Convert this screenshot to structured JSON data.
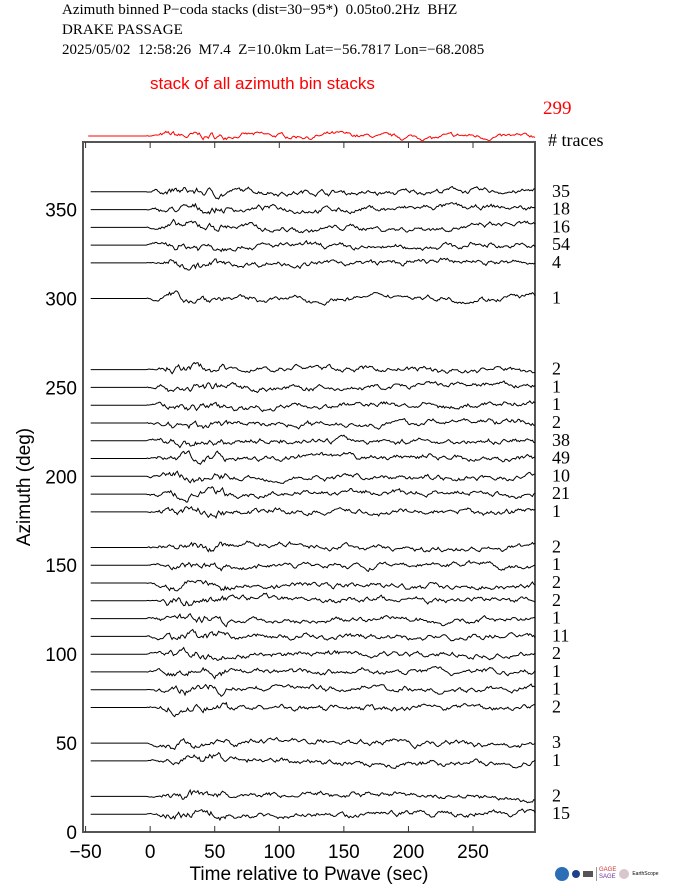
{
  "header": {
    "line1": "Azimuth binned P−coda stacks (dist=30−95*)  0.05to0.2Hz  BHZ",
    "line2": "DRAKE PASSAGE",
    "line3": "2025/05/02  12:58:26  M7.4  Z=10.0km Lat=−56.7817 Lon=−68.2085"
  },
  "chart_data": {
    "type": "line",
    "xlabel": "Time relative to Pwave (sec)",
    "ylabel": "Azimuth (deg)",
    "xlim": [
      -52,
      298
    ],
    "ylim": [
      0,
      388
    ],
    "xticks": [
      -50,
      0,
      50,
      100,
      150,
      200,
      250
    ],
    "xtick_labels": [
      "−50",
      "0",
      "50",
      "100",
      "150",
      "200",
      "250"
    ],
    "yticks": [
      0,
      50,
      100,
      150,
      200,
      250,
      300,
      350
    ],
    "ytick_labels": [
      "0",
      "50",
      "100",
      "150",
      "200",
      "250",
      "300",
      "350"
    ],
    "count_header": "# traces",
    "stack": {
      "label": "stack of all azimuth bin stacks",
      "count": "299",
      "color": "#ff0000"
    },
    "trace_color": "#000000",
    "series": [
      {
        "azimuth": 360,
        "traces": "35"
      },
      {
        "azimuth": 350,
        "traces": "18"
      },
      {
        "azimuth": 340,
        "traces": "16"
      },
      {
        "azimuth": 330,
        "traces": "54"
      },
      {
        "azimuth": 320,
        "traces": "4"
      },
      {
        "azimuth": 300,
        "traces": "1"
      },
      {
        "azimuth": 260,
        "traces": "2"
      },
      {
        "azimuth": 250,
        "traces": "1"
      },
      {
        "azimuth": 240,
        "traces": "1"
      },
      {
        "azimuth": 230,
        "traces": "2"
      },
      {
        "azimuth": 220,
        "traces": "38"
      },
      {
        "azimuth": 210,
        "traces": "49"
      },
      {
        "azimuth": 200,
        "traces": "10"
      },
      {
        "azimuth": 190,
        "traces": "21"
      },
      {
        "azimuth": 180,
        "traces": "1"
      },
      {
        "azimuth": 160,
        "traces": "2"
      },
      {
        "azimuth": 150,
        "traces": "1"
      },
      {
        "azimuth": 140,
        "traces": "2"
      },
      {
        "azimuth": 130,
        "traces": "2"
      },
      {
        "azimuth": 120,
        "traces": "1"
      },
      {
        "azimuth": 110,
        "traces": "11"
      },
      {
        "azimuth": 100,
        "traces": "2"
      },
      {
        "azimuth": 90,
        "traces": "1"
      },
      {
        "azimuth": 80,
        "traces": "1"
      },
      {
        "azimuth": 70,
        "traces": "2"
      },
      {
        "azimuth": 50,
        "traces": "3"
      },
      {
        "azimuth": 40,
        "traces": "1"
      },
      {
        "azimuth": 20,
        "traces": "2"
      },
      {
        "azimuth": 10,
        "traces": "15"
      }
    ]
  },
  "logos": {
    "gage": "GAGE",
    "sage": "SAGE",
    "earthscope": "EarthScope"
  }
}
